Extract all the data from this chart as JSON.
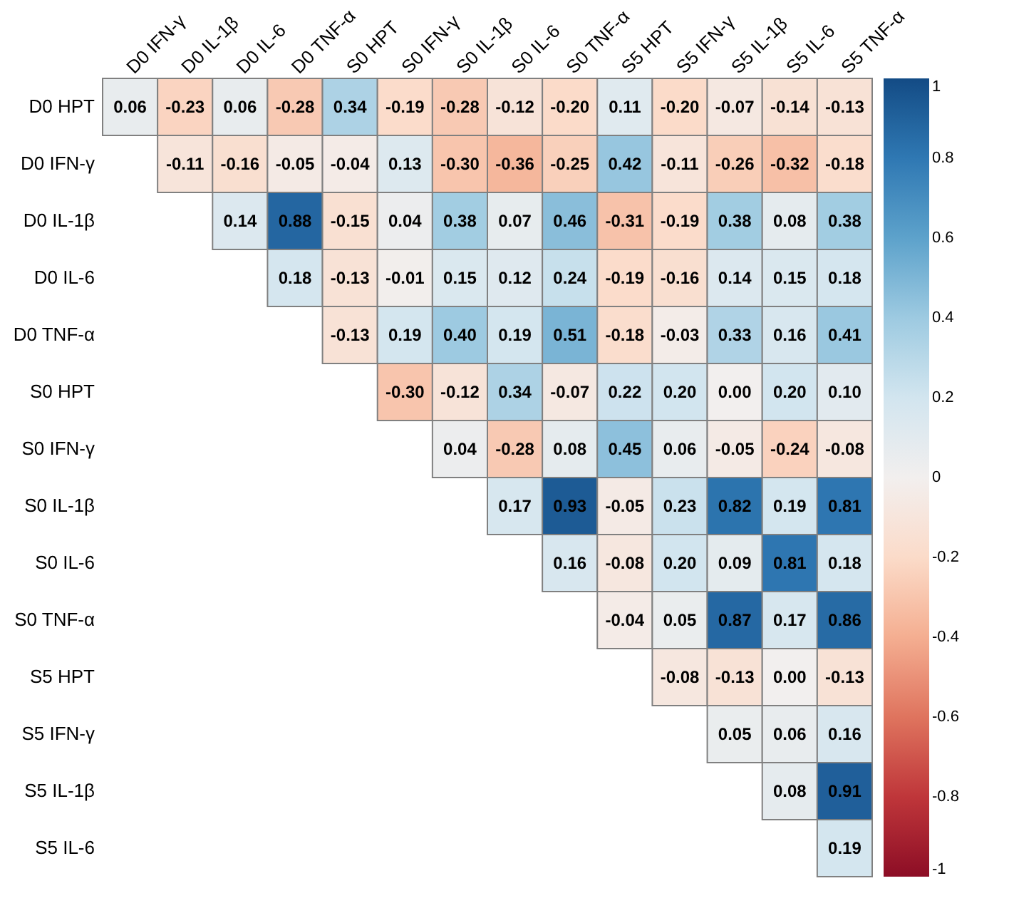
{
  "chart_data": {
    "type": "heatmap",
    "categories": [
      "D0 IFN-γ",
      "D0 IL-1β",
      "D0 IL-6",
      "D0 TNF-α",
      "S0 HPT",
      "S0 IFN-γ",
      "S0 IL-1β",
      "S0 IL-6",
      "S0 TNF-α",
      "S5 HPT",
      "S5 IFN-γ",
      "S5 IL-1β",
      "S5 IL-6",
      "S5 TNF-α"
    ],
    "y_categories": [
      "D0 HPT",
      "D0 IFN-γ",
      "D0 IL-1β",
      "D0 IL-6",
      "D0 TNF-α",
      "S0 HPT",
      "S0 IFN-γ",
      "S0 IL-1β",
      "S0 IL-6",
      "S0 TNF-α",
      "S5 HPT",
      "S5 IFN-γ",
      "S5 IL-1β",
      "S5 IL-6"
    ],
    "cells": [
      [
        0.06,
        -0.23,
        0.06,
        -0.28,
        0.34,
        -0.19,
        -0.28,
        -0.12,
        -0.2,
        0.11,
        -0.2,
        -0.07,
        -0.14,
        -0.13
      ],
      [
        null,
        -0.11,
        -0.16,
        -0.05,
        -0.04,
        0.13,
        -0.3,
        -0.36,
        -0.25,
        0.42,
        -0.11,
        -0.26,
        -0.32,
        -0.18
      ],
      [
        null,
        null,
        0.14,
        0.88,
        -0.15,
        0.04,
        0.38,
        0.07,
        0.46,
        -0.31,
        -0.19,
        0.38,
        0.08,
        0.38
      ],
      [
        null,
        null,
        null,
        0.18,
        -0.13,
        -0.01,
        0.15,
        0.12,
        0.24,
        -0.19,
        -0.16,
        0.14,
        0.15,
        0.18
      ],
      [
        null,
        null,
        null,
        null,
        -0.13,
        0.19,
        0.4,
        0.19,
        0.51,
        -0.18,
        -0.03,
        0.33,
        0.16,
        0.41
      ],
      [
        null,
        null,
        null,
        null,
        null,
        -0.3,
        -0.12,
        0.34,
        -0.07,
        0.22,
        0.2,
        0.0,
        0.2,
        0.1
      ],
      [
        null,
        null,
        null,
        null,
        null,
        null,
        0.04,
        -0.28,
        0.08,
        0.45,
        0.06,
        -0.05,
        -0.24,
        -0.08
      ],
      [
        null,
        null,
        null,
        null,
        null,
        null,
        null,
        0.17,
        0.93,
        -0.05,
        0.23,
        0.82,
        0.19,
        0.81
      ],
      [
        null,
        null,
        null,
        null,
        null,
        null,
        null,
        null,
        0.16,
        -0.08,
        0.2,
        0.09,
        0.81,
        0.18
      ],
      [
        null,
        null,
        null,
        null,
        null,
        null,
        null,
        null,
        null,
        -0.04,
        0.05,
        0.87,
        0.17,
        0.86
      ],
      [
        null,
        null,
        null,
        null,
        null,
        null,
        null,
        null,
        null,
        null,
        -0.08,
        -0.13,
        0.0,
        -0.13
      ],
      [
        null,
        null,
        null,
        null,
        null,
        null,
        null,
        null,
        null,
        null,
        null,
        0.05,
        0.06,
        0.16
      ],
      [
        null,
        null,
        null,
        null,
        null,
        null,
        null,
        null,
        null,
        null,
        null,
        null,
        0.08,
        0.91
      ],
      [
        null,
        null,
        null,
        null,
        null,
        null,
        null,
        null,
        null,
        null,
        null,
        null,
        null,
        0.19
      ]
    ],
    "cell_labels": [
      [
        "0.06",
        "-0.23",
        "0.06",
        "-0.28",
        "0.34",
        "-0.19",
        "-0.28",
        "-0.12",
        "-0.20",
        "0.11",
        "-0.20",
        "-0.07",
        "-0.14",
        "-0.13"
      ],
      [
        null,
        "-0.11",
        "-0.16",
        "-0.05",
        "-0.04",
        "0.13",
        "-0.30",
        "-0.36",
        "-0.25",
        "0.42",
        "-0.11",
        "-0.26",
        "-0.32",
        "-0.18"
      ],
      [
        null,
        null,
        "0.14",
        "0.88",
        "-0.15",
        "0.04",
        "0.38",
        "0.07",
        "0.46",
        "-0.31",
        "-0.19",
        "0.38",
        "0.08",
        "0.38"
      ],
      [
        null,
        null,
        null,
        "0.18",
        "-0.13",
        "-0.01",
        "0.15",
        "0.12",
        "0.24",
        "-0.19",
        "-0.16",
        "0.14",
        "0.15",
        "0.18"
      ],
      [
        null,
        null,
        null,
        null,
        "-0.13",
        "0.19",
        "0.40",
        "0.19",
        "0.51",
        "-0.18",
        "-0.03",
        "0.33",
        "0.16",
        "0.41"
      ],
      [
        null,
        null,
        null,
        null,
        null,
        "-0.30",
        "-0.12",
        "0.34",
        "-0.07",
        "0.22",
        "0.20",
        "0.00",
        "0.20",
        "0.10"
      ],
      [
        null,
        null,
        null,
        null,
        null,
        null,
        "0.04",
        "-0.28",
        "0.08",
        "0.45",
        "0.06",
        "-0.05",
        "-0.24",
        "-0.08"
      ],
      [
        null,
        null,
        null,
        null,
        null,
        null,
        null,
        "0.17",
        "0.93",
        "-0.05",
        "0.23",
        "0.82",
        "0.19",
        "0.81"
      ],
      [
        null,
        null,
        null,
        null,
        null,
        null,
        null,
        null,
        "0.16",
        "-0.08",
        "0.20",
        "0.09",
        "0.81",
        "0.18"
      ],
      [
        null,
        null,
        null,
        null,
        null,
        null,
        null,
        null,
        null,
        "-0.04",
        "0.05",
        "0.87",
        "0.17",
        "0.86"
      ],
      [
        null,
        null,
        null,
        null,
        null,
        null,
        null,
        null,
        null,
        null,
        "-0.08",
        "-0.13",
        "0.00",
        "-0.13"
      ],
      [
        null,
        null,
        null,
        null,
        null,
        null,
        null,
        null,
        null,
        null,
        null,
        "0.05",
        "0.06",
        "0.16"
      ],
      [
        null,
        null,
        null,
        null,
        null,
        null,
        null,
        null,
        null,
        null,
        null,
        null,
        "0.08",
        "0.91"
      ],
      [
        null,
        null,
        null,
        null,
        null,
        null,
        null,
        null,
        null,
        null,
        null,
        null,
        null,
        "0.19"
      ]
    ],
    "clim": [
      -1,
      1
    ],
    "cticks": [
      -1,
      -0.8,
      -0.6,
      -0.4,
      -0.2,
      0,
      0.2,
      0.4,
      0.6,
      0.8,
      1
    ],
    "data_labels": true
  }
}
